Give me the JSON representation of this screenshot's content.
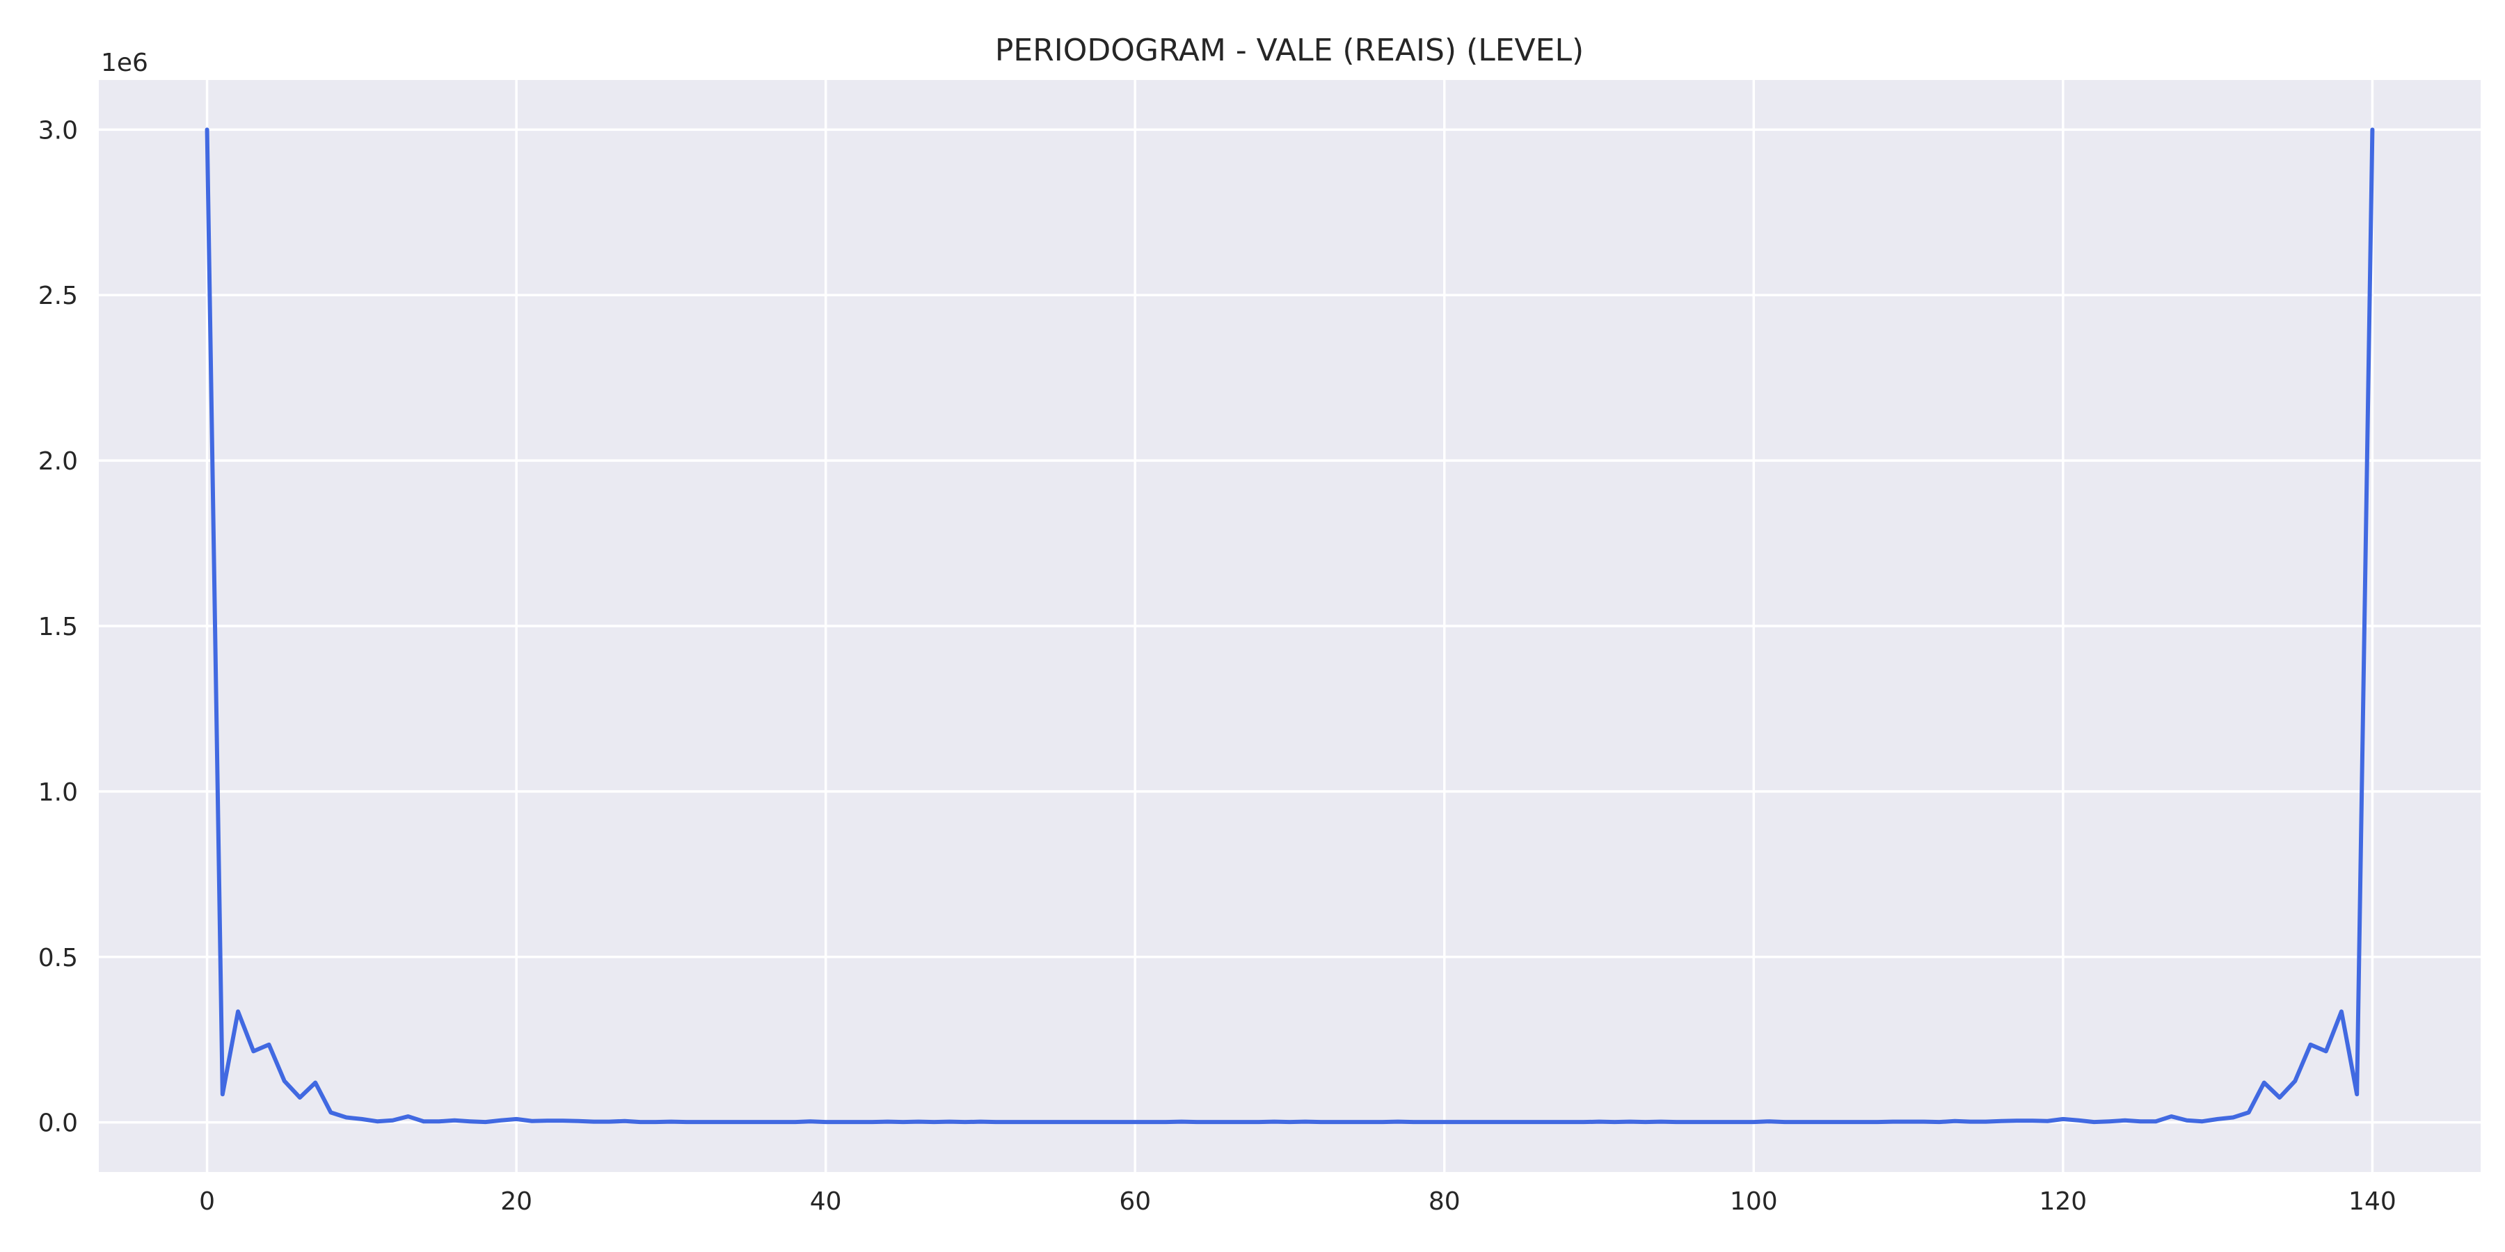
{
  "chart_data": {
    "type": "line",
    "title": "PERIODOGRAM - VALE (REAIS) (LEVEL)",
    "xlabel": "",
    "ylabel": "",
    "y_offset_label": "1e6",
    "xlim": [
      -7,
      147
    ],
    "ylim": [
      -0.15,
      3.15
    ],
    "x_ticks": [
      0,
      20,
      40,
      60,
      80,
      100,
      120,
      140
    ],
    "y_ticks": [
      0.0,
      0.5,
      1.0,
      1.5,
      2.0,
      2.5,
      3.0
    ],
    "x_tick_labels": [
      "0",
      "20",
      "40",
      "60",
      "80",
      "100",
      "120",
      "140"
    ],
    "y_tick_labels": [
      "0.0",
      "0.5",
      "1.0",
      "1.5",
      "2.0",
      "2.5",
      "3.0"
    ],
    "grid": true,
    "background": "#eaeaf2",
    "line_color": "#4169e1",
    "series": [
      {
        "x": [
          0,
          1,
          2,
          3,
          4,
          5,
          6,
          7,
          8,
          9,
          10,
          11,
          12,
          13,
          14,
          15,
          16,
          17,
          18,
          19,
          20,
          21,
          22,
          23,
          24,
          25,
          26,
          27,
          28,
          29,
          30,
          31,
          32,
          33,
          34,
          35,
          36,
          37,
          38,
          39,
          40,
          41,
          42,
          43,
          44,
          45,
          46,
          47,
          48,
          49,
          50,
          51,
          52,
          53,
          54,
          55,
          56,
          57,
          58,
          59,
          60,
          61,
          62,
          63,
          64,
          65,
          66,
          67,
          68,
          69,
          70,
          71,
          72,
          73,
          74,
          75,
          76,
          77,
          78,
          79,
          80,
          81,
          82,
          83,
          84,
          85,
          86,
          87,
          88,
          89,
          90,
          91,
          92,
          93,
          94,
          95,
          96,
          97,
          98,
          99,
          100,
          101,
          102,
          103,
          104,
          105,
          106,
          107,
          108,
          109,
          110,
          111,
          112,
          113,
          114,
          115,
          116,
          117,
          118,
          119,
          120,
          121,
          122,
          123,
          124,
          125,
          126,
          127,
          128,
          129,
          130,
          131,
          132,
          133,
          134,
          135,
          136,
          137,
          138,
          139,
          140
        ],
        "y": [
          3.0,
          0.085,
          0.335,
          0.215,
          0.235,
          0.125,
          0.075,
          0.12,
          0.03,
          0.015,
          0.01,
          0.003,
          0.006,
          0.018,
          0.003,
          0.003,
          0.006,
          0.003,
          0.001,
          0.006,
          0.01,
          0.004,
          0.005,
          0.005,
          0.004,
          0.002,
          0.002,
          0.004,
          0.001,
          0.001,
          0.002,
          0.001,
          0.001,
          0.001,
          0.001,
          0.001,
          0.001,
          0.001,
          0.001,
          0.003,
          0.001,
          0.001,
          0.001,
          0.001,
          0.002,
          0.001,
          0.002,
          0.001,
          0.002,
          0.001,
          0.002,
          0.001,
          0.001,
          0.001,
          0.001,
          0.001,
          0.001,
          0.001,
          0.001,
          0.001,
          0.001,
          0.001,
          0.001,
          0.002,
          0.001,
          0.001,
          0.001,
          0.001,
          0.001,
          0.002,
          0.001,
          0.002,
          0.001,
          0.001,
          0.001,
          0.001,
          0.001,
          0.002,
          0.001,
          0.001,
          0.001,
          0.001,
          0.001,
          0.001,
          0.001,
          0.001,
          0.001,
          0.001,
          0.001,
          0.001,
          0.002,
          0.001,
          0.002,
          0.001,
          0.002,
          0.001,
          0.001,
          0.001,
          0.001,
          0.001,
          0.001,
          0.003,
          0.001,
          0.001,
          0.001,
          0.001,
          0.001,
          0.001,
          0.001,
          0.002,
          0.002,
          0.002,
          0.001,
          0.004,
          0.002,
          0.002,
          0.004,
          0.005,
          0.005,
          0.004,
          0.01,
          0.006,
          0.001,
          0.003,
          0.006,
          0.003,
          0.003,
          0.018,
          0.006,
          0.003,
          0.01,
          0.015,
          0.03,
          0.12,
          0.075,
          0.125,
          0.235,
          0.215,
          0.335,
          0.085,
          3.0
        ]
      }
    ]
  }
}
